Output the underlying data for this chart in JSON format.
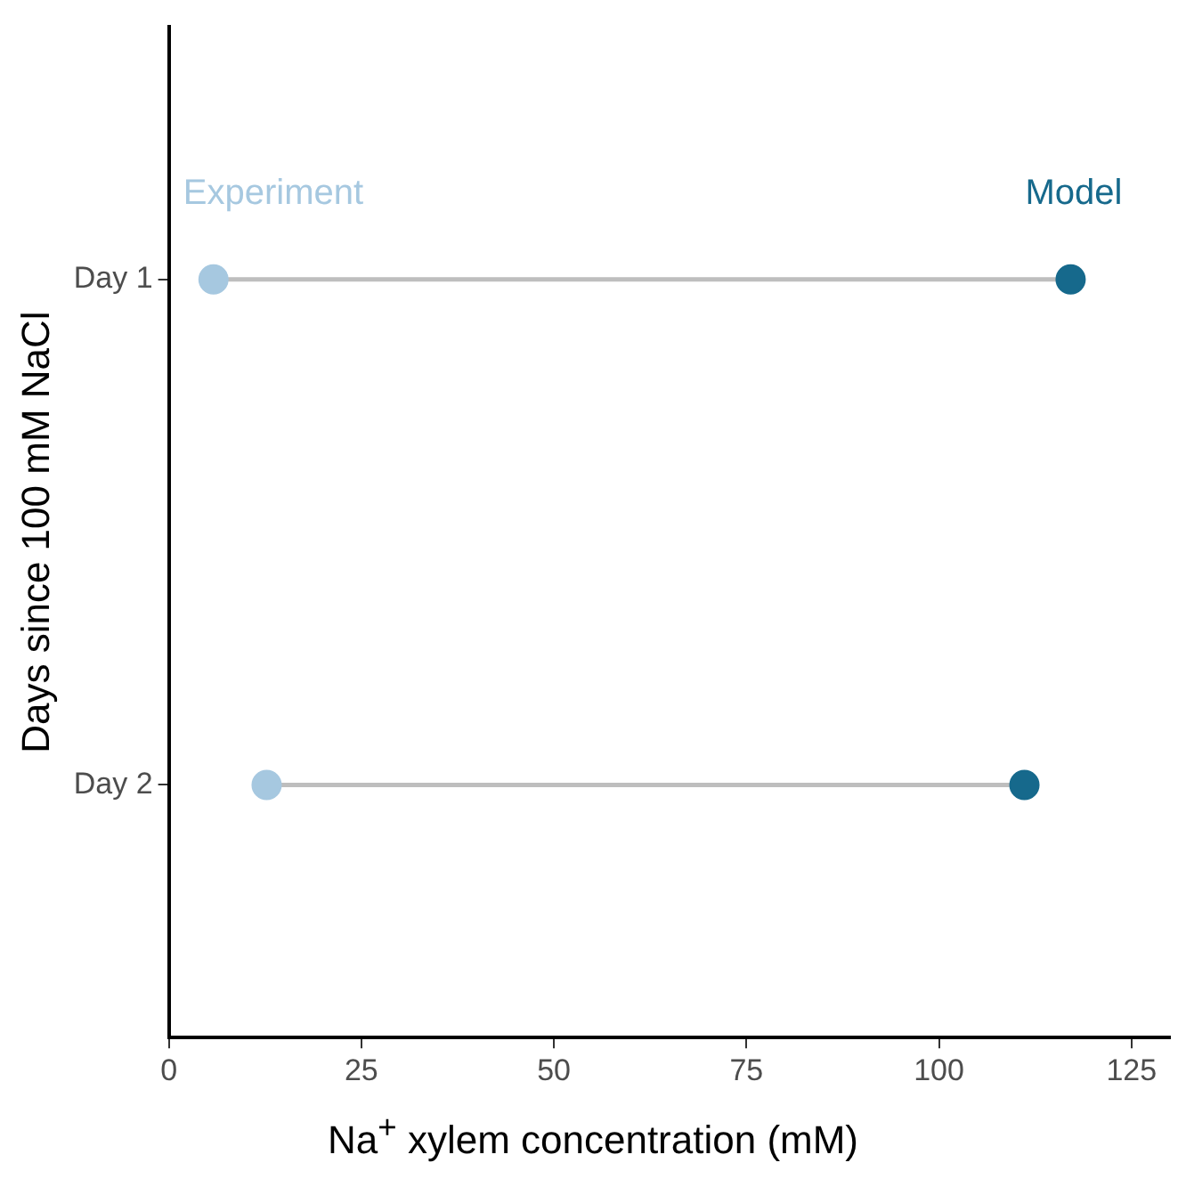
{
  "chart_data": {
    "type": "scatter",
    "orientation": "horizontal",
    "categories": [
      "Day 1",
      "Day 2"
    ],
    "series": [
      {
        "name": "Experiment",
        "color": "#a6c8e0",
        "values": [
          5.8,
          12.7
        ]
      },
      {
        "name": "Model",
        "color": "#16698c",
        "values": [
          117.1,
          111.1
        ]
      }
    ],
    "xlim": [
      0,
      130
    ],
    "xticks": [
      0,
      25,
      50,
      75,
      100,
      125
    ],
    "xlabel": "Na$^{+}$ xylem concentration (mM)",
    "ylabel": "Days since 100 mM NaCl",
    "grid": false,
    "legend": false,
    "marker": "circle"
  }
}
